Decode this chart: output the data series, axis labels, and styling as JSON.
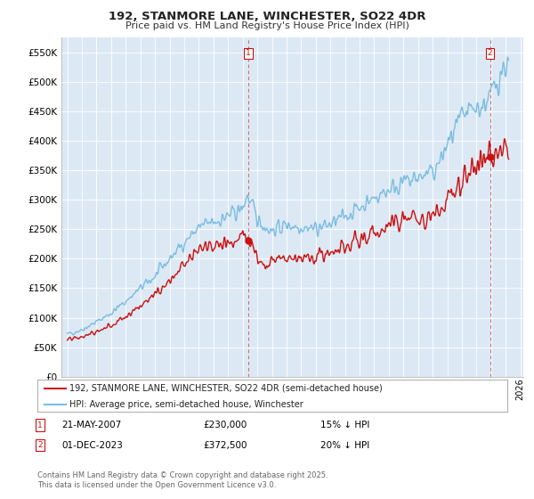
{
  "title": "192, STANMORE LANE, WINCHESTER, SO22 4DR",
  "subtitle": "Price paid vs. HM Land Registry's House Price Index (HPI)",
  "ylim": [
    0,
    575000
  ],
  "yticks": [
    0,
    50000,
    100000,
    150000,
    200000,
    250000,
    300000,
    350000,
    400000,
    450000,
    500000,
    550000
  ],
  "xlim_start": 1994.6,
  "xlim_end": 2026.2,
  "purchase1_x_yr": 2007.382,
  "purchase1_y": 230000,
  "purchase2_x_yr": 2023.917,
  "purchase2_y": 372500,
  "legend_line1": "192, STANMORE LANE, WINCHESTER, SO22 4DR (semi-detached house)",
  "legend_line2": "HPI: Average price, semi-detached house, Winchester",
  "annotation1_label": "1",
  "annotation1_date": "21-MAY-2007",
  "annotation1_price": "£230,000",
  "annotation1_hpi": "15% ↓ HPI",
  "annotation2_label": "2",
  "annotation2_date": "01-DEC-2023",
  "annotation2_price": "£372,500",
  "annotation2_hpi": "20% ↓ HPI",
  "footer": "Contains HM Land Registry data © Crown copyright and database right 2025.\nThis data is licensed under the Open Government Licence v3.0.",
  "color_hpi": "#7bbde0",
  "color_price": "#cc1111",
  "color_marker": "#cc1111",
  "chart_bg": "#dce9f5",
  "background_color": "#ffffff",
  "grid_color": "#ffffff"
}
